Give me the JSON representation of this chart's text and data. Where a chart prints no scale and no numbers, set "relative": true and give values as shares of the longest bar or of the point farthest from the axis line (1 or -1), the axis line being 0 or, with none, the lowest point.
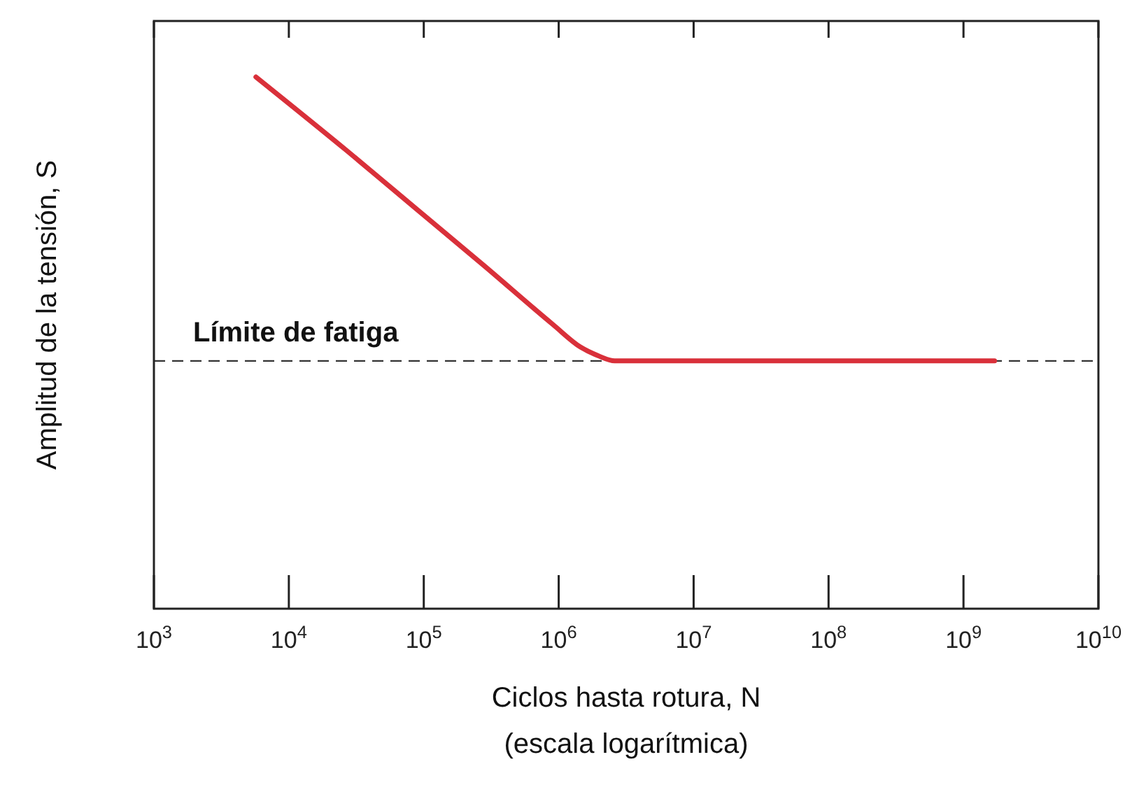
{
  "chart_data": {
    "type": "line",
    "relative": true,
    "log": "x",
    "xlabel": "Ciclos hasta rotura, N\n(escala logarítmica)",
    "ylabel": "Amplitud de la tensión, S",
    "xlim": [
      1000,
      10000000000
    ],
    "xticks": [
      {
        "value": 1000,
        "label": "10$^{3}$"
      },
      {
        "value": 10000,
        "label": "10$^{4}$"
      },
      {
        "value": 100000,
        "label": "10$^{5}$"
      },
      {
        "value": 1000000,
        "label": "10$^{6}$"
      },
      {
        "value": 10000000,
        "label": "10$^{7}$"
      },
      {
        "value": 100000000,
        "label": "10$^{8}$"
      },
      {
        "value": 1000000000,
        "label": "10$^{9}$"
      },
      {
        "value": 10000000000,
        "label": "10$^{10}$"
      }
    ],
    "series": [
      {
        "color": "#d9303a",
        "x": [
          5700,
          27000,
          87000,
          280000,
          910000,
          1450000,
          1950000,
          2600000,
          1700000000
        ],
        "values": [
          1,
          0.861,
          0.753,
          0.645,
          0.534,
          0.492,
          0.476,
          0.466,
          0.466
        ]
      }
    ],
    "ref_lines": [
      {
        "axis": "y",
        "value": 0.466,
        "label": "Límite de fatiga",
        "color": "#333333",
        "line_style": "dashed"
      }
    ],
    "grid": false,
    "marker": "none",
    "line_style": "solid"
  }
}
